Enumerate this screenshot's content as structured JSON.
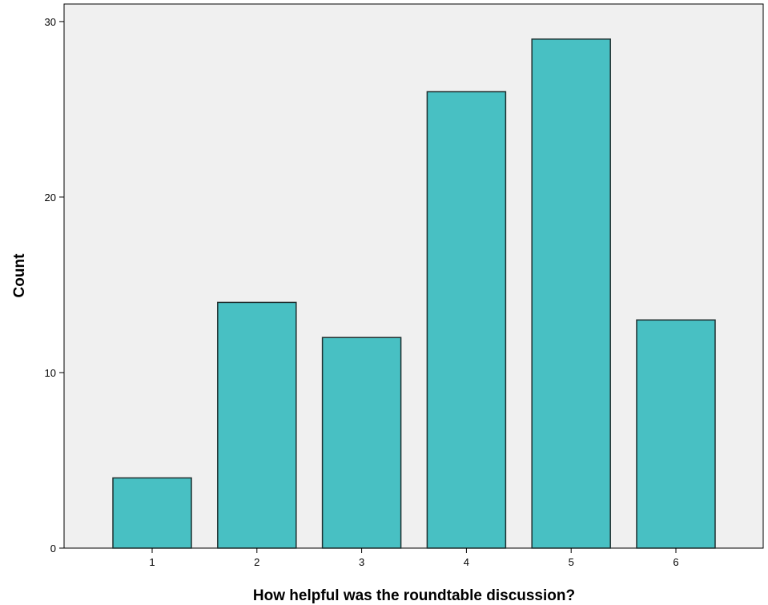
{
  "chart_data": {
    "type": "bar",
    "title": "",
    "xlabel": "How helpful was the roundtable discussion?",
    "ylabel": "Count",
    "categories": [
      "1",
      "2",
      "3",
      "4",
      "5",
      "6"
    ],
    "values": [
      4,
      14,
      12,
      26,
      29,
      13
    ],
    "ylim": [
      0,
      31
    ],
    "yticks": [
      0,
      10,
      20,
      30
    ],
    "grid": false,
    "legend": "none",
    "colors": {
      "bar_fill": "#48C0C3",
      "bar_stroke": "#1f2f2f",
      "plot_background": "#F0F0F0",
      "axis": "#000000"
    }
  }
}
